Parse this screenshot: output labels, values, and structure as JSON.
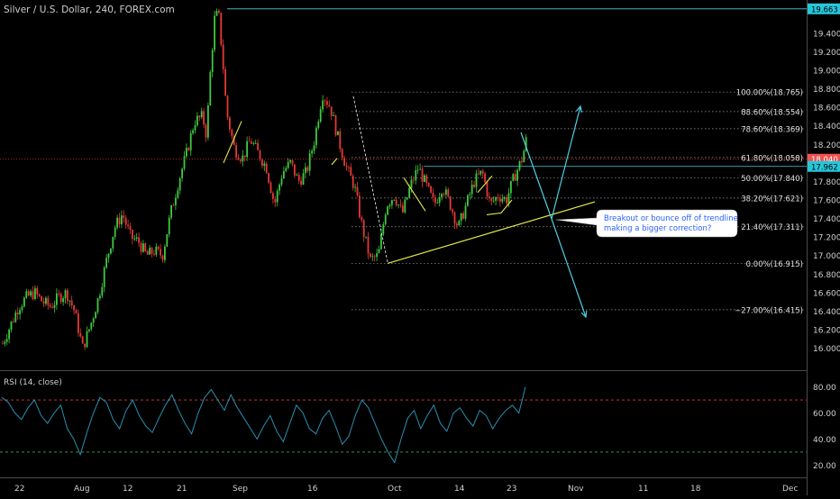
{
  "header": {
    "title": "Silver / U.S. Dollar, 240, FOREX.com"
  },
  "chart_data": {
    "type": "candlestick",
    "symbol": "Silver / U.S. Dollar",
    "timeframe": "240",
    "source": "FOREX.com",
    "y_ticks": [
      16.0,
      16.2,
      16.4,
      16.6,
      16.8,
      17.0,
      17.2,
      17.4,
      17.6,
      17.8,
      18.0,
      18.2,
      18.4,
      18.6,
      18.8,
      19.0,
      19.2,
      19.4
    ],
    "y_tick_labels": [
      "16.000",
      "16.200",
      "16.400",
      "16.600",
      "16.800",
      "17.000",
      "17.200",
      "17.400",
      "17.600",
      "17.800",
      "18.000",
      "18.200",
      "18.400",
      "18.600",
      "18.800",
      "19.000",
      "19.200",
      "19.400"
    ],
    "ylim": [
      15.85,
      19.7
    ],
    "x_ticks": [
      "22",
      "Aug",
      "12",
      "21",
      "Sep",
      "16",
      "Oct",
      "14",
      "23",
      "Nov",
      "11",
      "18",
      "Dec"
    ],
    "price_tags": [
      {
        "value": 19.663,
        "label": "19.663",
        "color": "#26c6da",
        "text_color": "#000000"
      },
      {
        "value": 18.04,
        "label": "18.040",
        "color": "#ef5350",
        "text_color": "#ffffff"
      },
      {
        "value": 17.962,
        "label": "17.962",
        "color": "#26c6da",
        "text_color": "#000000"
      }
    ],
    "fibonacci": [
      {
        "level": "100.00%",
        "value": 18.765,
        "label": "100.00%(18.765)"
      },
      {
        "level": "88.60%",
        "value": 18.554,
        "label": "88.60%(18.554)"
      },
      {
        "level": "78.60%",
        "value": 18.369,
        "label": "78.60%(18.369)"
      },
      {
        "level": "61.80%",
        "value": 18.058,
        "label": "61.80%(18.058)"
      },
      {
        "level": "50.00%",
        "value": 17.84,
        "label": "50.00%(17.840)"
      },
      {
        "level": "38.20%",
        "value": 17.621,
        "label": "38.20%(17.621)"
      },
      {
        "level": "21.40%",
        "value": 17.311,
        "label": "21.40%(17.311)"
      },
      {
        "level": "0.00%",
        "value": 16.915,
        "label": "0.00%(16.915)"
      },
      {
        "level": "-27.00%",
        "value": 16.415,
        "label": "−27.00%(16.415)"
      }
    ],
    "price_path": [
      [
        16.05,
        0
      ],
      [
        16.25,
        2
      ],
      [
        16.45,
        4
      ],
      [
        16.55,
        6
      ],
      [
        16.6,
        8
      ],
      [
        16.5,
        10
      ],
      [
        16.45,
        12
      ],
      [
        16.55,
        14
      ],
      [
        16.6,
        16
      ],
      [
        16.4,
        18
      ],
      [
        16.0,
        20
      ],
      [
        16.25,
        22
      ],
      [
        16.55,
        24
      ],
      [
        16.95,
        26
      ],
      [
        17.3,
        28
      ],
      [
        17.45,
        30
      ],
      [
        17.2,
        32
      ],
      [
        17.15,
        34
      ],
      [
        17.0,
        36
      ],
      [
        17.05,
        38
      ],
      [
        17.0,
        40
      ],
      [
        17.45,
        42
      ],
      [
        17.8,
        44
      ],
      [
        18.1,
        46
      ],
      [
        18.45,
        48
      ],
      [
        18.5,
        50
      ],
      [
        18.3,
        51
      ],
      [
        19.0,
        52
      ],
      [
        19.55,
        53
      ],
      [
        19.62,
        54
      ],
      [
        19.15,
        55
      ],
      [
        18.55,
        56
      ],
      [
        18.15,
        58
      ],
      [
        18.05,
        60
      ],
      [
        18.25,
        62
      ],
      [
        18.1,
        64
      ],
      [
        17.95,
        66
      ],
      [
        17.55,
        68
      ],
      [
        17.9,
        70
      ],
      [
        18.0,
        72
      ],
      [
        17.8,
        74
      ],
      [
        17.9,
        76
      ],
      [
        18.25,
        78
      ],
      [
        18.75,
        80
      ],
      [
        18.6,
        82
      ],
      [
        18.25,
        84
      ],
      [
        17.95,
        86
      ],
      [
        17.75,
        88
      ],
      [
        17.3,
        90
      ],
      [
        16.95,
        92
      ],
      [
        17.0,
        94
      ],
      [
        17.55,
        96
      ],
      [
        17.65,
        98
      ],
      [
        17.45,
        100
      ],
      [
        17.75,
        102
      ],
      [
        17.95,
        104
      ],
      [
        17.75,
        106
      ],
      [
        17.55,
        108
      ],
      [
        17.75,
        110
      ],
      [
        17.55,
        112
      ],
      [
        17.3,
        114
      ],
      [
        17.55,
        116
      ],
      [
        17.8,
        118
      ],
      [
        17.9,
        120
      ],
      [
        17.55,
        122
      ],
      [
        17.65,
        124
      ],
      [
        17.6,
        126
      ],
      [
        17.85,
        128
      ],
      [
        18.05,
        130
      ],
      [
        18.25,
        131
      ]
    ],
    "path_x_range": [
      0,
      131
    ],
    "rsi": {
      "label": "RSI (14, close)",
      "ticks": [
        20,
        40,
        60,
        80
      ],
      "tick_labels": [
        "20.00",
        "40.00",
        "60.00",
        "80.00"
      ],
      "upper": 70,
      "lower": 30,
      "values": [
        72,
        68,
        60,
        55,
        64,
        70,
        58,
        52,
        60,
        66,
        48,
        40,
        28,
        45,
        60,
        72,
        68,
        55,
        48,
        62,
        70,
        58,
        50,
        45,
        56,
        66,
        74,
        62,
        52,
        44,
        60,
        72,
        78,
        70,
        62,
        74,
        64,
        56,
        48,
        40,
        50,
        58,
        46,
        38,
        52,
        66,
        60,
        48,
        44,
        56,
        62,
        50,
        36,
        42,
        58,
        70,
        64,
        52,
        40,
        30,
        22,
        40,
        56,
        62,
        48,
        58,
        66,
        52,
        46,
        60,
        64,
        56,
        50,
        62,
        58,
        48,
        56,
        62,
        66,
        60,
        80
      ]
    }
  },
  "annotation": {
    "text_line1": "Breakout or bounce off of trendline",
    "text_line2": "making a bigger correction?"
  },
  "colors": {
    "up": "#3fc93f",
    "down": "#e53935",
    "fib_line": "#9e9e9e",
    "trendline": "#e8e84a",
    "arrow": "#4dd0e1",
    "rsi_line": "#2a8fb0",
    "rsi_upper": "#e53935",
    "rsi_lower": "#3fa34d",
    "axis_text": "#cfcfcf",
    "annotation_text": "#2962ff"
  }
}
